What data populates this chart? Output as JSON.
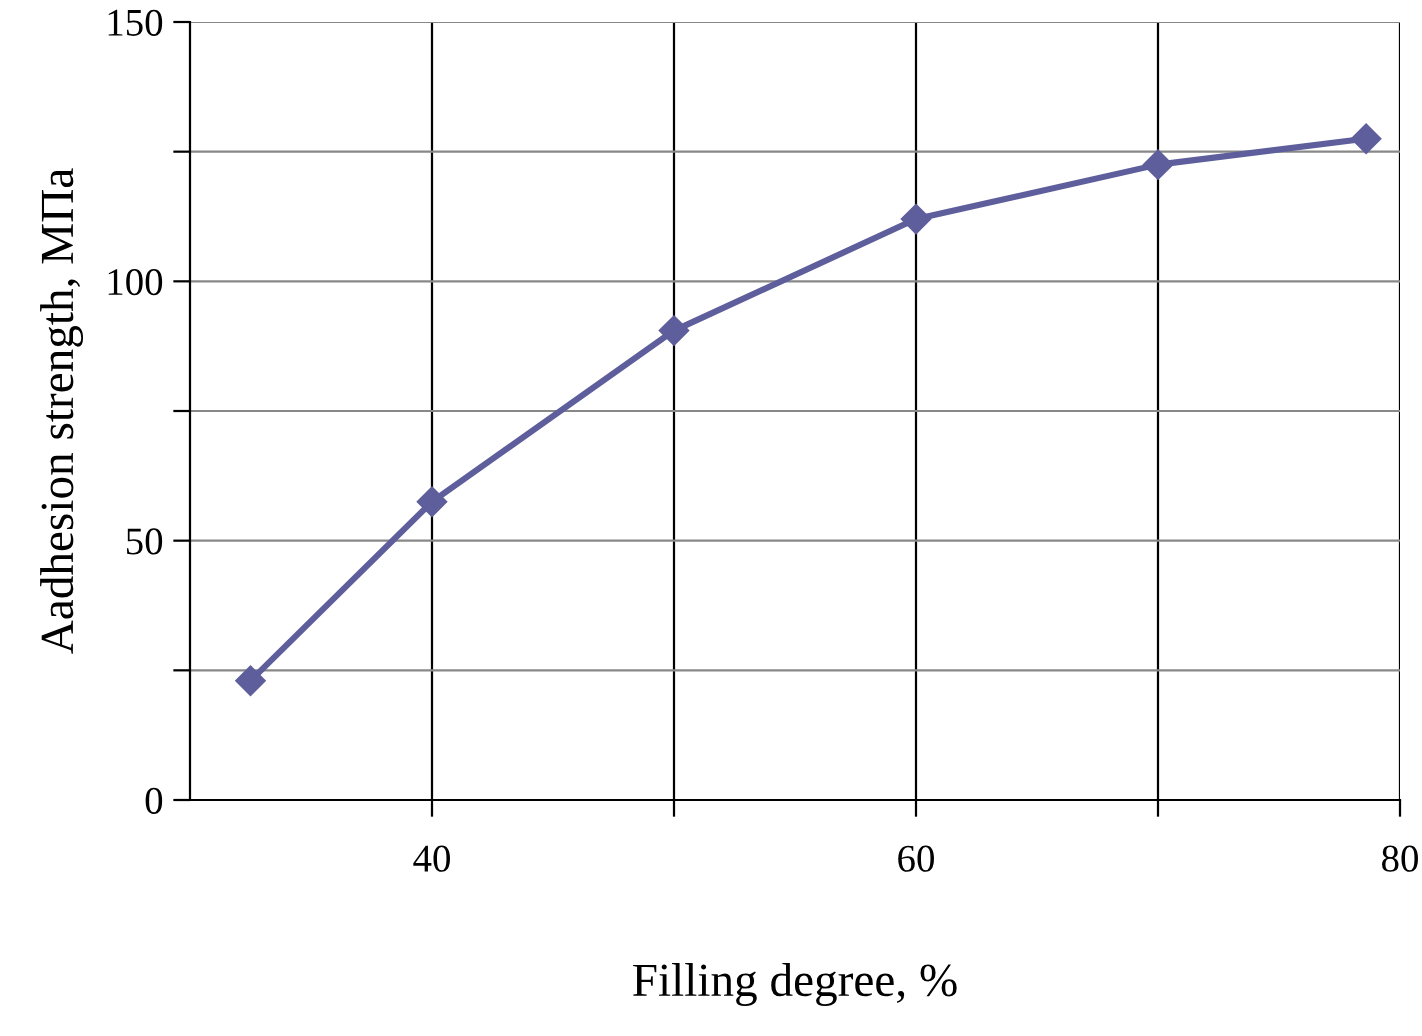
{
  "chart_data": {
    "type": "line",
    "xlabel": "Filling degree, %",
    "ylabel": "Aadhesion strength, МПа",
    "x": [
      32.5,
      40,
      50,
      60,
      70,
      78.6
    ],
    "series": [
      {
        "color": "#5e5e9c",
        "values": [
          23,
          57.5,
          90.5,
          112,
          122.5,
          127.5
        ]
      }
    ],
    "xlim": [
      30,
      80
    ],
    "ylim": [
      0,
      150
    ],
    "xticks": [
      40,
      {
        "value": 50,
        "label": null
      },
      60,
      {
        "value": 70,
        "label": null
      },
      80
    ],
    "yticks": [
      0,
      {
        "value": 25,
        "label": null
      },
      50,
      {
        "value": 75,
        "label": null
      },
      100,
      {
        "value": 125,
        "label": null
      },
      150
    ],
    "grid": true,
    "marker": "diamond",
    "line_style": "solid"
  }
}
